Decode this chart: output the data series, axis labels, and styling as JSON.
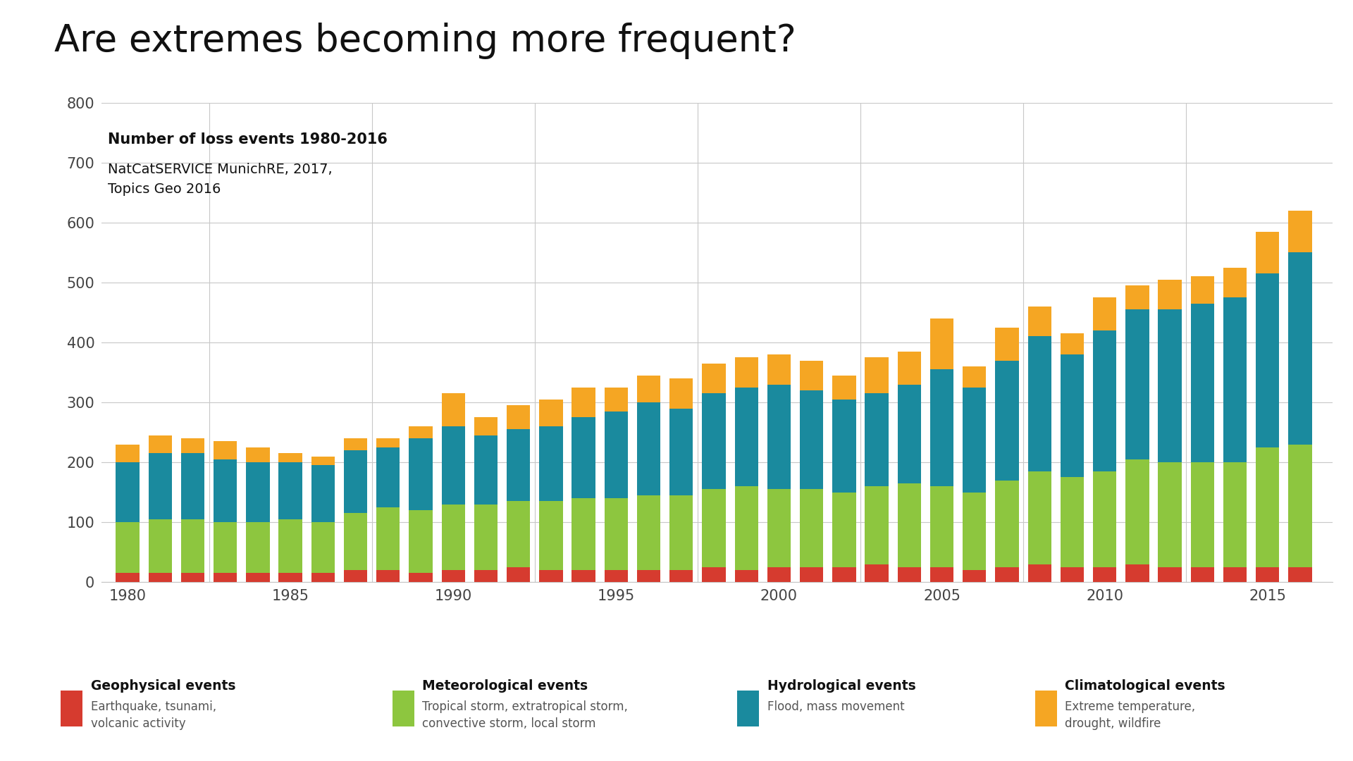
{
  "title": "Are extremes becoming more frequent?",
  "subtitle_bold": "Number of loss events 1980-2016",
  "subtitle_normal": "NatCatSERVICE MunichRE, 2017,\nTopics Geo 2016",
  "years": [
    1980,
    1981,
    1982,
    1983,
    1984,
    1985,
    1986,
    1987,
    1988,
    1989,
    1990,
    1991,
    1992,
    1993,
    1994,
    1995,
    1996,
    1997,
    1998,
    1999,
    2000,
    2001,
    2002,
    2003,
    2004,
    2005,
    2006,
    2007,
    2008,
    2009,
    2010,
    2011,
    2012,
    2013,
    2014,
    2015,
    2016
  ],
  "geophysical": [
    15,
    15,
    15,
    15,
    15,
    15,
    15,
    20,
    20,
    15,
    20,
    20,
    25,
    20,
    20,
    20,
    20,
    20,
    25,
    20,
    25,
    25,
    25,
    30,
    25,
    25,
    20,
    25,
    30,
    25,
    25,
    30,
    25,
    25,
    25,
    25,
    25
  ],
  "meteorological": [
    85,
    90,
    90,
    85,
    85,
    90,
    85,
    95,
    105,
    105,
    110,
    110,
    110,
    115,
    120,
    120,
    125,
    125,
    130,
    140,
    130,
    130,
    125,
    130,
    140,
    135,
    130,
    145,
    155,
    150,
    160,
    175,
    175,
    175,
    175,
    200,
    205
  ],
  "hydrological": [
    100,
    110,
    110,
    105,
    100,
    95,
    95,
    105,
    100,
    120,
    130,
    115,
    120,
    125,
    135,
    145,
    155,
    145,
    160,
    165,
    175,
    165,
    155,
    155,
    165,
    195,
    175,
    200,
    225,
    205,
    235,
    250,
    255,
    265,
    275,
    290,
    320
  ],
  "climatological": [
    30,
    30,
    25,
    30,
    25,
    15,
    15,
    20,
    15,
    20,
    55,
    30,
    40,
    45,
    50,
    40,
    45,
    50,
    50,
    50,
    50,
    50,
    40,
    60,
    55,
    85,
    35,
    55,
    50,
    35,
    55,
    40,
    50,
    45,
    50,
    70,
    70
  ],
  "color_geo": "#d63b2f",
  "color_met": "#8dc63f",
  "color_hyd": "#1a8a9e",
  "color_cli": "#f5a623",
  "bg_color": "#ffffff",
  "grid_color": "#c8c8c8",
  "legend": [
    {
      "label_bold": "Geophysical events",
      "label_sub": "Earthquake, tsunami,\nvolcanic activity",
      "color": "#d63b2f"
    },
    {
      "label_bold": "Meteorological events",
      "label_sub": "Tropical storm, extratropical storm,\nconvective storm, local storm",
      "color": "#8dc63f"
    },
    {
      "label_bold": "Hydrological events",
      "label_sub": "Flood, mass movement",
      "color": "#1a8a9e"
    },
    {
      "label_bold": "Climatological events",
      "label_sub": "Extreme temperature,\ndrought, wildfire",
      "color": "#f5a623"
    }
  ]
}
